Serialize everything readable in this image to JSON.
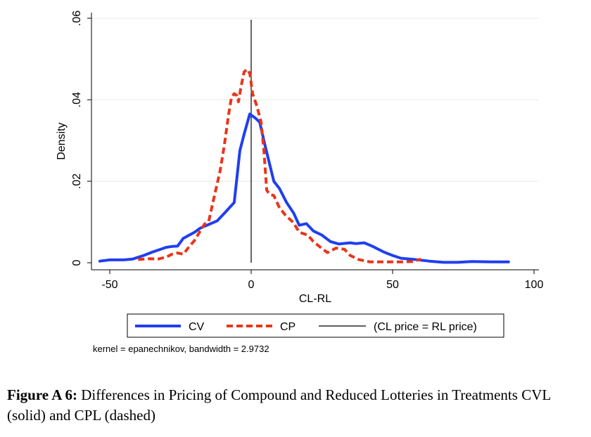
{
  "chart_data": {
    "type": "line",
    "xlabel": "CL-RL",
    "ylabel": "Density",
    "xlim": [
      -55,
      102
    ],
    "ylim": [
      0,
      0.062
    ],
    "x_ticks": [
      -50,
      0,
      50,
      100
    ],
    "x_tick_labels": [
      "-50",
      "0",
      "50",
      "100"
    ],
    "y_ticks": [
      0,
      0.02,
      0.04,
      0.06
    ],
    "y_tick_labels": [
      "0",
      ".02",
      ".04",
      ".06"
    ],
    "grid": "horizontal",
    "legend_position": "bottom",
    "vline": {
      "x": 0,
      "name": "(CL price = RL price)"
    },
    "series": [
      {
        "name": "CV",
        "style": "solid",
        "color": "#1f3ff0",
        "points": [
          [
            -53.5,
            0.0004
          ],
          [
            -50,
            0.0007
          ],
          [
            -45,
            0.0007
          ],
          [
            -42,
            0.0009
          ],
          [
            -38,
            0.0018
          ],
          [
            -35,
            0.0026
          ],
          [
            -30,
            0.0038
          ],
          [
            -28,
            0.004
          ],
          [
            -26,
            0.0041
          ],
          [
            -24,
            0.006
          ],
          [
            -20,
            0.0075
          ],
          [
            -18,
            0.0085
          ],
          [
            -15,
            0.0094
          ],
          [
            -12,
            0.0103
          ],
          [
            -9,
            0.0125
          ],
          [
            -6,
            0.0148
          ],
          [
            -4,
            0.0275
          ],
          [
            -2.5,
            0.0315
          ],
          [
            -0.5,
            0.0365
          ],
          [
            1.5,
            0.0355
          ],
          [
            3,
            0.0345
          ],
          [
            5,
            0.0285
          ],
          [
            8,
            0.02
          ],
          [
            10,
            0.0182
          ],
          [
            12.5,
            0.0148
          ],
          [
            15,
            0.0122
          ],
          [
            17,
            0.0092
          ],
          [
            19.5,
            0.0096
          ],
          [
            22,
            0.0078
          ],
          [
            25,
            0.0068
          ],
          [
            28,
            0.0052
          ],
          [
            31,
            0.0046
          ],
          [
            35,
            0.0049
          ],
          [
            37,
            0.0047
          ],
          [
            40,
            0.0049
          ],
          [
            43,
            0.004
          ],
          [
            47,
            0.0026
          ],
          [
            50,
            0.0018
          ],
          [
            53,
            0.0011
          ],
          [
            58,
            0.0008
          ],
          [
            63,
            0.0004
          ],
          [
            68,
            0.0001
          ],
          [
            73,
            0.0001
          ],
          [
            78,
            0.0003
          ],
          [
            85,
            0.0002
          ],
          [
            91,
            0.0002
          ]
        ]
      },
      {
        "name": "CP",
        "style": "dashed",
        "color": "#e8351a",
        "points": [
          [
            -40,
            0.0008
          ],
          [
            -36,
            0.001
          ],
          [
            -33,
            0.0009
          ],
          [
            -30,
            0.0014
          ],
          [
            -28,
            0.0021
          ],
          [
            -26,
            0.0024
          ],
          [
            -24,
            0.0021
          ],
          [
            -22,
            0.0039
          ],
          [
            -20,
            0.0055
          ],
          [
            -18,
            0.0078
          ],
          [
            -16.5,
            0.0095
          ],
          [
            -15,
            0.0102
          ],
          [
            -13,
            0.0164
          ],
          [
            -11,
            0.0225
          ],
          [
            -9.5,
            0.0288
          ],
          [
            -8,
            0.0362
          ],
          [
            -7,
            0.0405
          ],
          [
            -6,
            0.0415
          ],
          [
            -5,
            0.041
          ],
          [
            -4.5,
            0.0395
          ],
          [
            -3.5,
            0.0435
          ],
          [
            -2.5,
            0.0468
          ],
          [
            -1.5,
            0.0475
          ],
          [
            -0.5,
            0.0465
          ],
          [
            0.5,
            0.0415
          ],
          [
            2,
            0.0385
          ],
          [
            3.5,
            0.0345
          ],
          [
            4.5,
            0.0275
          ],
          [
            5.5,
            0.0178
          ],
          [
            6.5,
            0.0168
          ],
          [
            8,
            0.0165
          ],
          [
            10,
            0.0135
          ],
          [
            12,
            0.0118
          ],
          [
            15,
            0.0098
          ],
          [
            17,
            0.0075
          ],
          [
            20,
            0.0068
          ],
          [
            22,
            0.0052
          ],
          [
            25,
            0.0035
          ],
          [
            27,
            0.0025
          ],
          [
            30,
            0.0036
          ],
          [
            33,
            0.0033
          ],
          [
            35,
            0.0018
          ],
          [
            38,
            0.0008
          ],
          [
            42,
            0.0002
          ],
          [
            46,
            0.0002
          ],
          [
            50,
            0.0002
          ],
          [
            53,
            0.0002
          ],
          [
            57,
            0.0003
          ],
          [
            60,
            0.0009
          ]
        ]
      }
    ],
    "note": "kernel = epanechnikov, bandwidth = 2.9732"
  },
  "caption": {
    "label": "Figure A 6:",
    "text": " Differences in Pricing of Compound and Reduced Lotteries in Treatments CVL (solid) and CPL (dashed)"
  }
}
